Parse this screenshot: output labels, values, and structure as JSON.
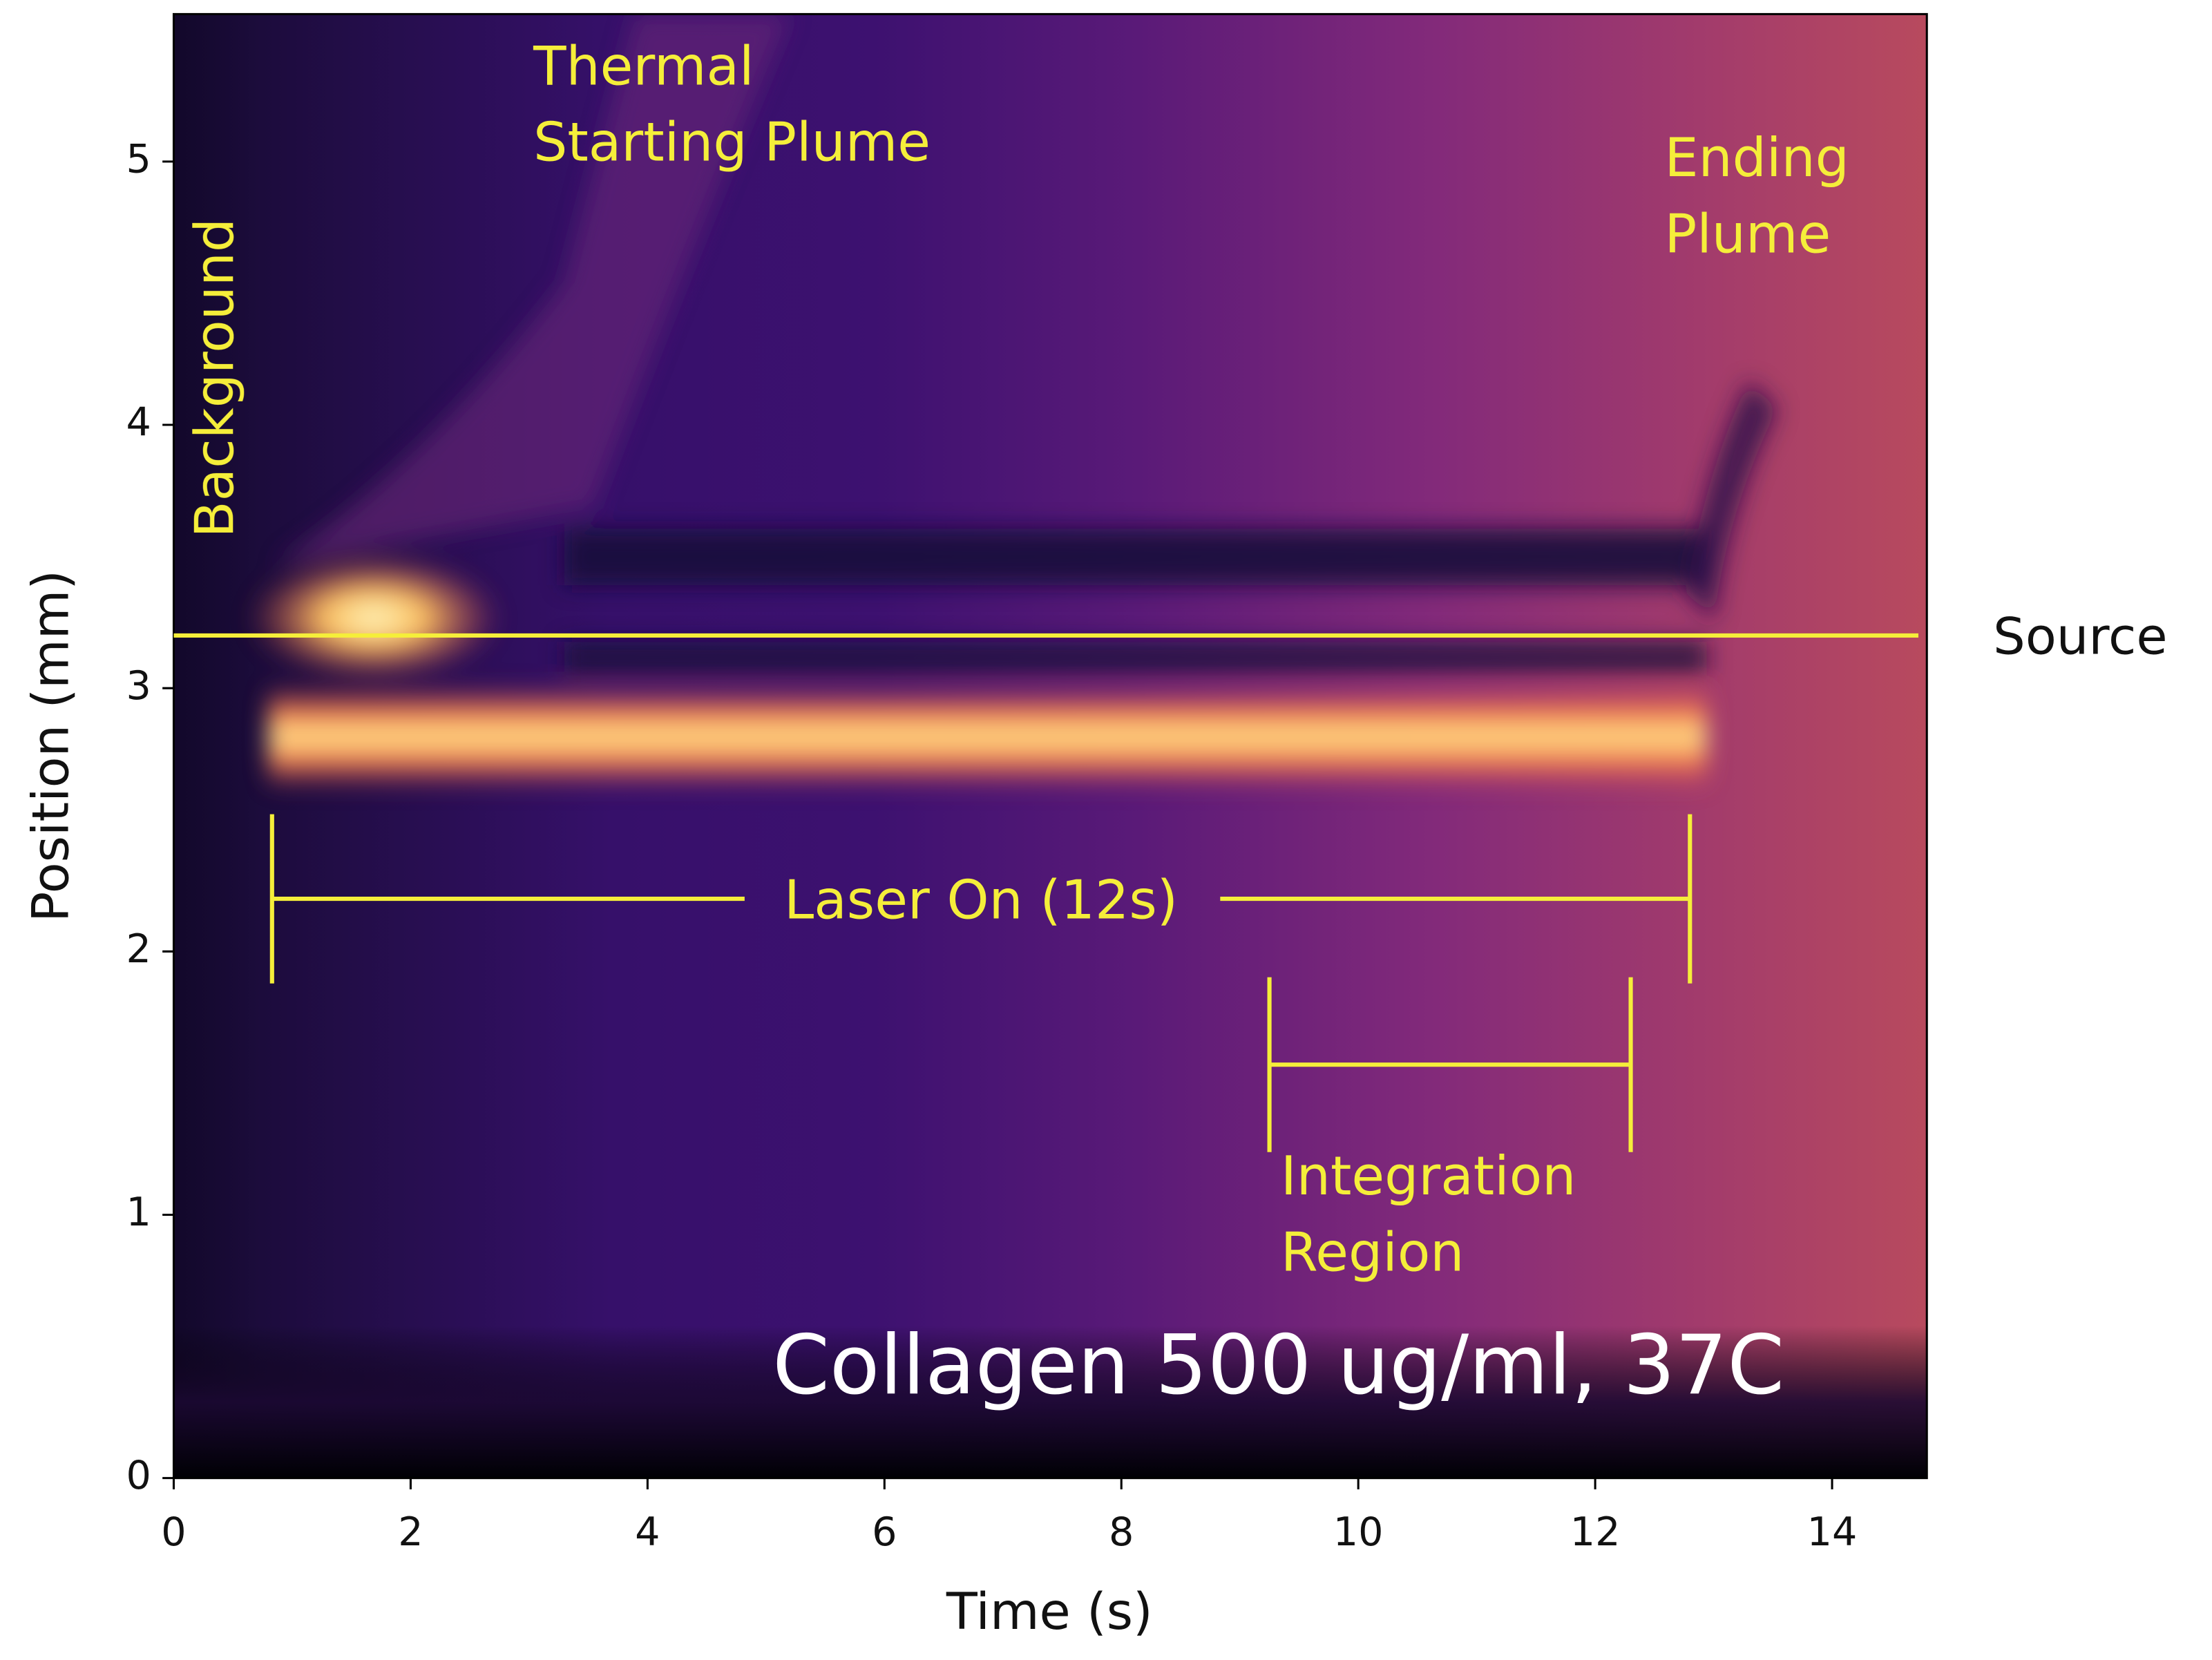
{
  "chart_data": {
    "type": "heatmap",
    "xlabel": "Time (s)",
    "ylabel": "Position (mm)",
    "xlim": [
      0,
      14.8
    ],
    "ylim": [
      0,
      5.56
    ],
    "xticks": [
      0,
      2,
      4,
      6,
      8,
      10,
      12,
      14
    ],
    "yticks": [
      0,
      1,
      2,
      3,
      4,
      5
    ],
    "colormap": "magma",
    "line_color": "#f5ee3a",
    "hlines": [
      {
        "y": 3.2,
        "label": "Source"
      }
    ],
    "spans": [
      {
        "x": [
          0.83,
          12.8
        ],
        "y": 2.2,
        "label": "Laser On (12s)"
      },
      {
        "x": [
          9.25,
          12.3
        ],
        "y": 1.57,
        "label": [
          "Integration",
          "Region"
        ]
      }
    ],
    "annotations": [
      {
        "text": [
          "Thermal",
          "Starting Plume"
        ]
      },
      {
        "text": [
          "Ending",
          "Plume"
        ]
      },
      {
        "text": [
          "Background"
        ]
      },
      {
        "text": [
          "Collagen 500 ug/ml, 37C"
        ]
      }
    ]
  }
}
